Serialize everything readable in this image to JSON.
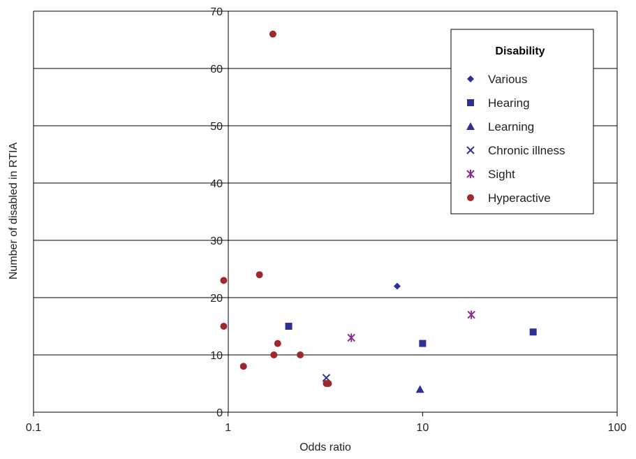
{
  "chart_data": {
    "type": "scatter",
    "x_scale": "log",
    "xlim": [
      0.1,
      100
    ],
    "ylim": [
      0,
      70
    ],
    "x_ticks": [
      0.1,
      1,
      10,
      100
    ],
    "x_tick_labels": [
      "0.1",
      "1",
      "10",
      "100"
    ],
    "y_ticks": [
      0,
      10,
      20,
      30,
      40,
      50,
      60,
      70
    ],
    "y_tick_labels": [
      "0",
      "10",
      "20",
      "30",
      "40",
      "50",
      "60",
      "70"
    ],
    "xlabel": "Odds ratio",
    "ylabel": "Number of disabled in RTIA",
    "grid": "horizontal",
    "legend_title": "Disability",
    "legend_position": "top-right",
    "series": [
      {
        "name": "Various",
        "marker": "diamond",
        "color": "#2e3192",
        "points": [
          [
            7.4,
            22
          ]
        ]
      },
      {
        "name": "Hearing",
        "marker": "square",
        "color": "#2e3192",
        "points": [
          [
            2.05,
            15
          ],
          [
            10.0,
            12
          ],
          [
            37.0,
            14
          ]
        ]
      },
      {
        "name": "Learning",
        "marker": "triangle",
        "color": "#2e3192",
        "points": [
          [
            9.7,
            4
          ]
        ]
      },
      {
        "name": "Chronic illness",
        "marker": "x",
        "color": "#2e3192",
        "points": [
          [
            3.2,
            6
          ]
        ]
      },
      {
        "name": "Sight",
        "marker": "star",
        "color": "#8b2a8f",
        "points": [
          [
            4.3,
            13
          ],
          [
            17.8,
            17
          ]
        ]
      },
      {
        "name": "Hyperactive",
        "marker": "circle",
        "color": "#a0282d",
        "points": [
          [
            1.7,
            66
          ],
          [
            1.45,
            24
          ],
          [
            0.95,
            23
          ],
          [
            0.95,
            15
          ],
          [
            1.8,
            12
          ],
          [
            1.72,
            10
          ],
          [
            2.35,
            10
          ],
          [
            1.2,
            8
          ],
          [
            3.2,
            5
          ],
          [
            3.28,
            5
          ]
        ]
      }
    ]
  }
}
